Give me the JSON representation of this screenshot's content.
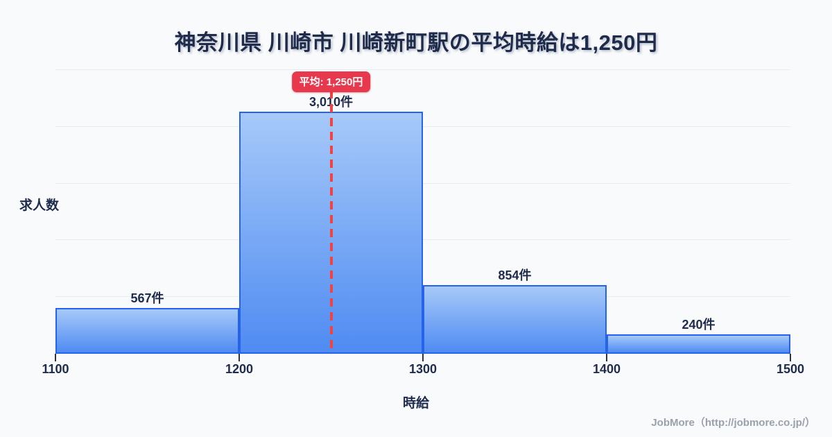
{
  "page": {
    "background_color": "#f8fafc"
  },
  "title": "神奈川県 川崎市 川崎新町駅の平均時給は1,250円",
  "average_badge": {
    "label": "平均: 1,250円",
    "value": 1250,
    "color": "#e8384e"
  },
  "axis": {
    "y_label": "求人数",
    "x_label": "時給",
    "x_tick_labels": [
      "1100",
      "1200",
      "1300",
      "1400",
      "1500"
    ]
  },
  "footer": {
    "credit": "JobMore（http://jobmore.co.jp/）"
  },
  "chart_data": {
    "type": "bar",
    "subtype": "histogram",
    "title": "神奈川県 川崎市 川崎新町駅の平均時給は1,250円",
    "xlabel": "時給",
    "ylabel": "求人数",
    "categories": [
      "1100-1200",
      "1200-1300",
      "1300-1400",
      "1400-1500"
    ],
    "bin_edges": [
      1100,
      1200,
      1300,
      1400,
      1500
    ],
    "values": [
      567,
      3010,
      854,
      240
    ],
    "bar_labels": [
      "567件",
      "3,010件",
      "854件",
      "240件"
    ],
    "x_ticks": [
      1100,
      1200,
      1300,
      1400,
      1500
    ],
    "xlim": [
      1100,
      1500
    ],
    "ylim": [
      0,
      3530
    ],
    "grid": "horizontal",
    "legend": "none",
    "average_line": {
      "x": 1250,
      "label": "平均: 1,250円",
      "style": "dashed",
      "color": "#ef4444"
    },
    "colors": {
      "bar_fill_top": "#a6c9f8",
      "bar_fill_bottom": "#4f8bf2",
      "bar_border": "#2563eb",
      "text": "#1e2b4b",
      "grid": "#e7ebf3"
    }
  }
}
